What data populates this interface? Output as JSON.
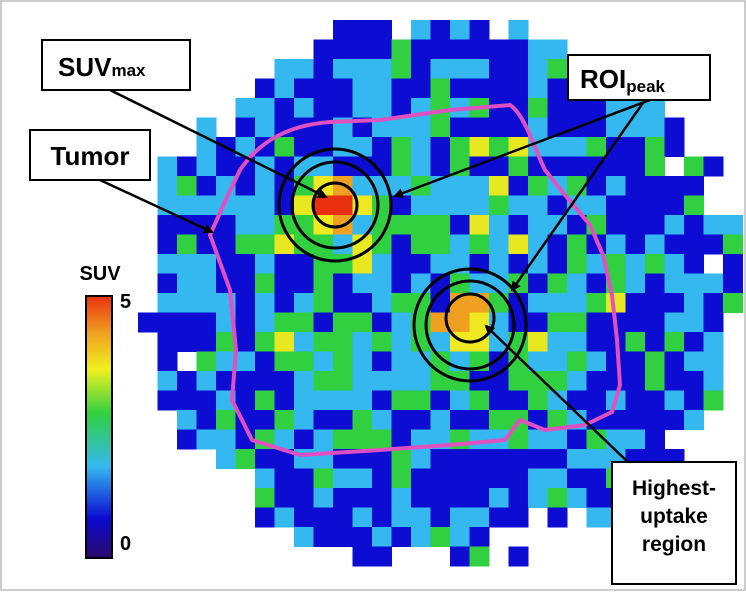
{
  "labels": {
    "suvmax": {
      "main": "SUV",
      "sub": "max"
    },
    "roipeak": {
      "main": "ROI",
      "sub": "peak"
    },
    "tumor": "Tumor",
    "highest": [
      "Highest-",
      "uptake",
      "region"
    ]
  },
  "colorbar": {
    "title": "SUV",
    "ticks": [
      0,
      5
    ]
  }
}
